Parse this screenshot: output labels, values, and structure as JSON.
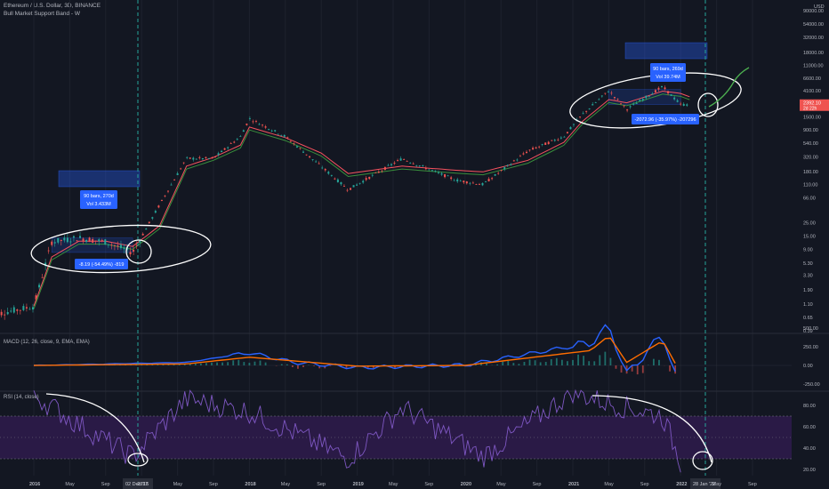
{
  "header": {
    "title": "Ethereum / U.S. Dollar, 3D, BINANCE",
    "indicator": "Bull Market Support Band - W",
    "currency": "USD"
  },
  "macd_label": "MACD (12, 26, close, 9, EMA, EMA)",
  "rsi_label": "RSI (14, close)",
  "colors": {
    "background": "#131722",
    "grid": "#1e222d",
    "candle_up": "#26a69a",
    "candle_down": "#ef5350",
    "band_upper": "#f7525f",
    "band_lower": "#388e3c",
    "macd_line": "#2962ff",
    "signal_line": "#ff6d00",
    "rsi_line": "#7e57c2",
    "rsi_band": "#2a1a46",
    "cycle_line": "#26a69a",
    "annotation": "#ffffff",
    "price_label": "#ef5350",
    "measure_label": "#2962ff"
  },
  "price_axis_labels": [
    "90000.00",
    "54000.00",
    "32000.00",
    "18000.00",
    "11000.00",
    "6600.00",
    "4100.00",
    "2400.00",
    "1500.00",
    "900.00",
    "540.00",
    "320.00",
    "180.00",
    "110.00",
    "66.00",
    "25.00",
    "15.00",
    "9.00",
    "5.30",
    "3.30",
    "1.90",
    "1.10",
    "0.65",
    "0.39"
  ],
  "macd_axis_labels": [
    "500.00",
    "250.00",
    "0.00",
    "-250.00"
  ],
  "rsi_axis_labels": [
    "80.00",
    "60.00",
    "40.00",
    "20.00"
  ],
  "time_axis_labels": [
    "2016",
    "May",
    "Sep",
    "2017",
    "May",
    "Sep",
    "2018",
    "May",
    "Sep",
    "2019",
    "May",
    "Sep",
    "2020",
    "May",
    "Sep",
    "2021",
    "May",
    "Sep",
    "2022",
    "May",
    "Sep"
  ],
  "date_markers": [
    "02 Dec '16",
    "28 Jan '22"
  ],
  "current_price": {
    "value": "2392.10",
    "countdown": "2d 22h"
  },
  "annotations": {
    "cycle1": {
      "bars": "90 bars, 270d",
      "vol": "Vol 3.433M",
      "change": "-8.19 (-54.49%) -819"
    },
    "cycle2": {
      "bars": "90 bars, 269d",
      "vol": "Vol 39.74M",
      "change": "-2072.96 (-35.97%) -207296"
    }
  },
  "chart_data": [
    {
      "type": "candlestick",
      "title": "Ethereum / U.S. Dollar, 3D, BINANCE",
      "yscale": "log",
      "ylim": [
        0.39,
        90000
      ],
      "x": [
        "2015-08",
        "2016-01",
        "2016-03",
        "2016-06",
        "2016-09",
        "2016-12",
        "2017-03",
        "2017-06",
        "2017-09",
        "2017-12",
        "2018-01",
        "2018-05",
        "2018-09",
        "2018-12",
        "2019-06",
        "2019-12",
        "2020-03",
        "2020-08",
        "2020-12",
        "2021-02",
        "2021-05",
        "2021-07",
        "2021-11",
        "2022-01",
        "2022-02"
      ],
      "y": [
        0.7,
        1.0,
        12,
        14,
        12,
        8,
        50,
        300,
        300,
        700,
        1400,
        700,
        220,
        90,
        300,
        130,
        110,
        400,
        700,
        1600,
        4100,
        2000,
        4800,
        2400,
        2400
      ],
      "series": [
        {
          "name": "Bull Market Support Band - W",
          "values": [
            null,
            0.9,
            6,
            11,
            11,
            9,
            20,
            200,
            280,
            450,
            900,
            600,
            330,
            150,
            200,
            170,
            160,
            250,
            500,
            1100,
            2600,
            2300,
            3600,
            3300,
            2900
          ]
        }
      ]
    },
    {
      "type": "line",
      "title": "MACD (12, 26, close, 9, EMA, EMA)",
      "ylim": [
        -300,
        500
      ],
      "x": [
        "2016",
        "2017-06",
        "2018-01",
        "2018-06",
        "2019",
        "2020",
        "2021-03",
        "2021-05",
        "2021-07",
        "2021-11",
        "2022-01"
      ],
      "series": [
        {
          "name": "MACD",
          "values": [
            0,
            40,
            170,
            40,
            -30,
            5,
            300,
            530,
            -120,
            420,
            -360
          ]
        },
        {
          "name": "Signal",
          "values": [
            0,
            20,
            110,
            60,
            -10,
            0,
            200,
            400,
            40,
            330,
            -100
          ]
        }
      ]
    },
    {
      "type": "line",
      "title": "RSI (14, close)",
      "ylim": [
        15,
        95
      ],
      "x": [
        "2016-01",
        "2016-06",
        "2016-12",
        "2017-06",
        "2018-01",
        "2018-12",
        "2019-06",
        "2020-03",
        "2021-01",
        "2021-05",
        "2021-11",
        "2022-01"
      ],
      "y": [
        90,
        62,
        32,
        86,
        74,
        30,
        78,
        32,
        93,
        82,
        70,
        27
      ]
    }
  ]
}
